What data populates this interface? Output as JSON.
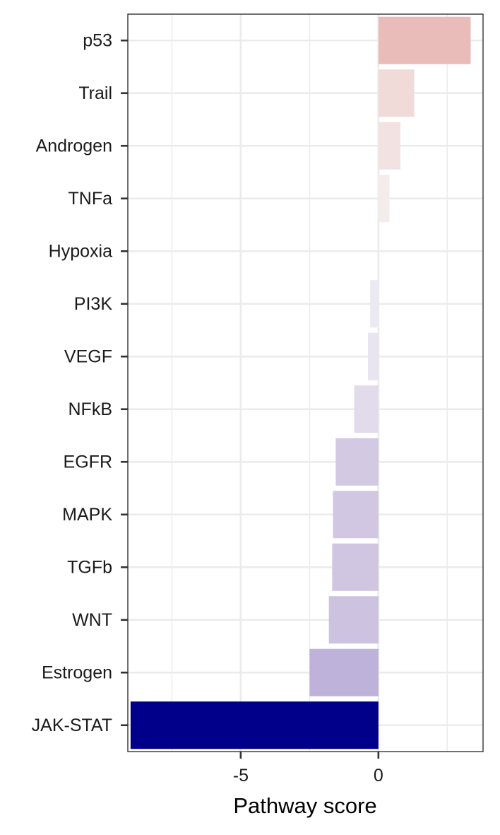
{
  "chart_data": {
    "type": "bar",
    "orientation": "horizontal",
    "title": "",
    "xlabel": "Pathway score",
    "ylabel": "",
    "xlim": [
      -9.1,
      3.8
    ],
    "x_ticks": [
      -5,
      0
    ],
    "x_tick_labels": [
      "-5",
      "0"
    ],
    "grid": true,
    "legend": "none",
    "categories": [
      "p53",
      "Trail",
      "Androgen",
      "TNFa",
      "Hypoxia",
      "PI3K",
      "VEGF",
      "NFkB",
      "EGFR",
      "MAPK",
      "TGFb",
      "WNT",
      "Estrogen",
      "JAK-STAT"
    ],
    "values": [
      3.35,
      1.3,
      0.8,
      0.4,
      0.0,
      -0.3,
      -0.38,
      -0.88,
      -1.55,
      -1.65,
      -1.68,
      -1.8,
      -2.5,
      -9.0
    ],
    "colors": [
      "#eabcb9",
      "#f1dbd9",
      "#f2e2e1",
      "#f2eceb",
      "#f3f0f0",
      "#ebe9f1",
      "#e9e5f0",
      "#e1dbeb",
      "#d3c9e3",
      "#d1c7e2",
      "#d0c6e2",
      "#cec2e1",
      "#beb1da",
      "#00008b"
    ]
  }
}
